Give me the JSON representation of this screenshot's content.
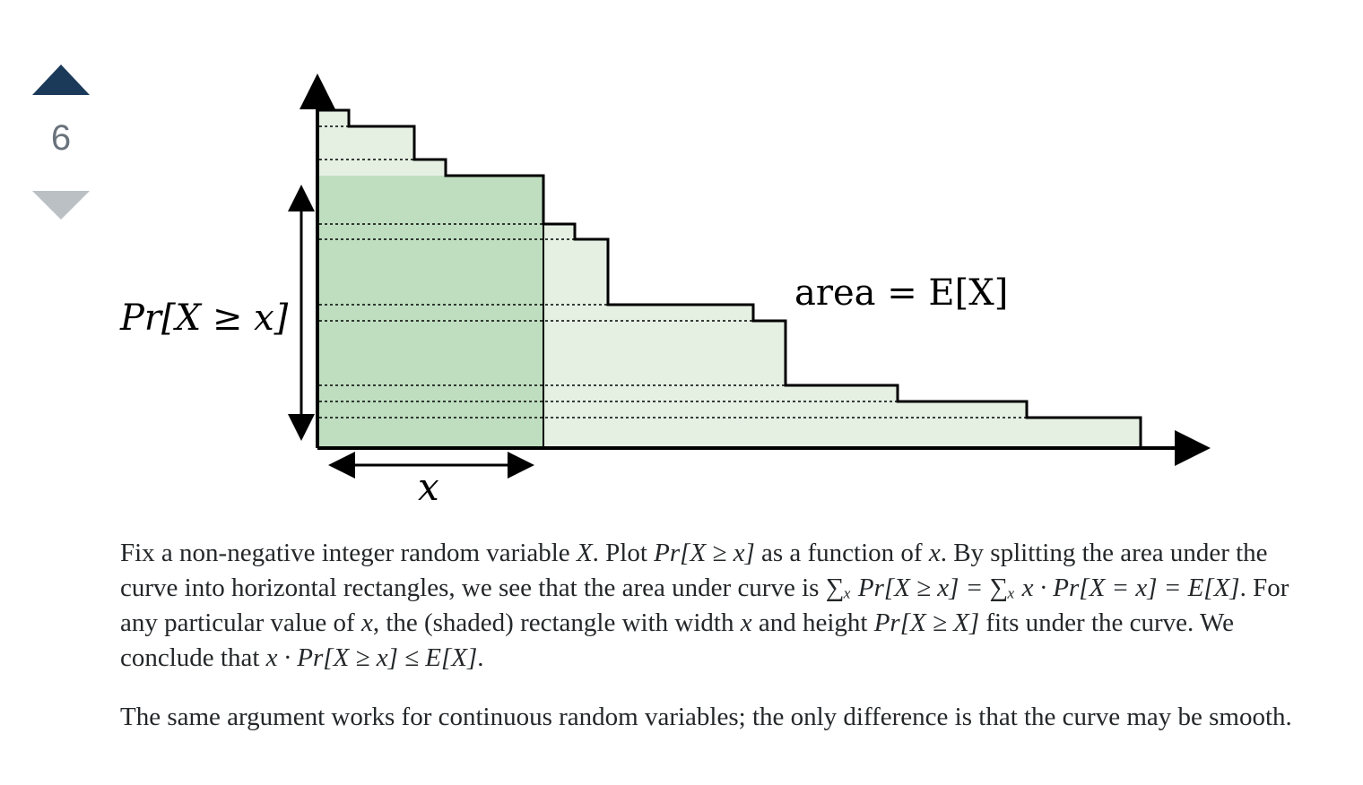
{
  "vote": {
    "count": "6",
    "up_icon": "arrow-up-icon",
    "down_icon": "arrow-down-icon",
    "up_color": "#1b3a5a",
    "down_color": "#bbc0c4"
  },
  "figure": {
    "y_label": "Pr[X ≥ x]",
    "area_label": "area = E[X]",
    "x_label": "x",
    "fill_light": "#e5f0e3",
    "fill_dark": "#bfdec0"
  },
  "post": {
    "p1": [
      "Fix a non-negative integer random variable ",
      "X",
      ". Plot ",
      "Pr[X ≥ x]",
      " as a function of ",
      "x",
      ". By splitting the area under the curve into horizontal rectangles, we see that the area under curve is ",
      "∑ₓ Pr[X ≥ x] = ∑ₓ x · Pr[X = x] = E[X]",
      ". For any particular value of ",
      "x",
      ", the (shaded) rectangle with width ",
      "x",
      " and height ",
      "Pr[X ≥ X]",
      " fits under the curve. We conclude that ",
      "x · Pr[X ≥ x] ≤ E[X]",
      "."
    ],
    "p2": "The same argument works for continuous random variables; the only difference is that the curve may be smooth."
  }
}
